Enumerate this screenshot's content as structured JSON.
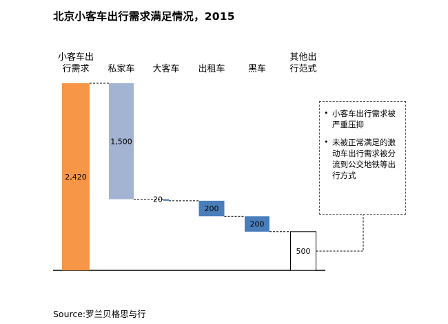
{
  "header": {
    "title": "北京小客车出行需求满足情况，2015"
  },
  "chart_data": {
    "type": "bar",
    "title": "北京小客车出行需求满足情况，2015",
    "categories": [
      [
        "小客车出",
        "行需求"
      ],
      [
        "私家车"
      ],
      [
        "大客车"
      ],
      [
        "出租车"
      ],
      [
        "黑车"
      ],
      [
        "其他出",
        "行范式"
      ]
    ],
    "values": [
      2420,
      1500,
      20,
      200,
      200,
      500
    ],
    "value_labels": [
      "2,420",
      "1,500",
      "20",
      "200",
      "200",
      "500"
    ],
    "colors": {
      "total": "#F79646",
      "private_car": "#A2B4D2",
      "steps": "#4A7EBB",
      "remainder": "#FFFFFF"
    }
  },
  "note": {
    "items": [
      "小客车出行需求被严重压抑",
      "未被正常满足的激动车出行需求被分流到公交地铁等出行方式"
    ]
  },
  "source": "Source:罗兰贝格思与行"
}
